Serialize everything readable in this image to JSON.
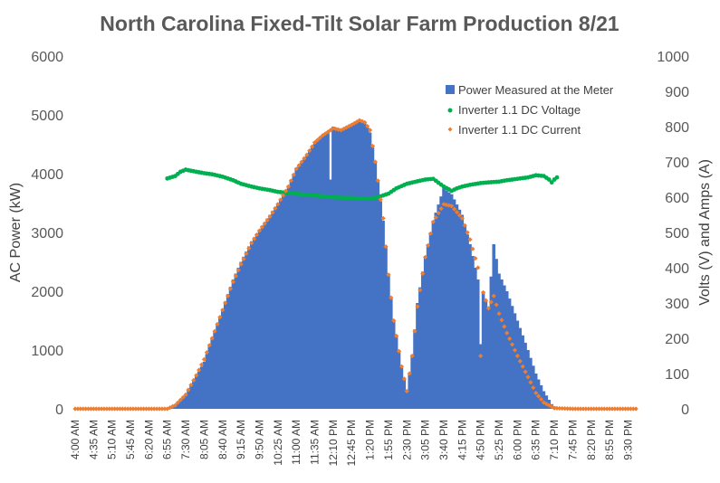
{
  "chart_data": {
    "type": "bar",
    "title": "North Carolina Fixed-Tilt Solar Farm Production 8/21",
    "ylabel": "AC Power (kW)",
    "y2label": "Volts (V) and Amps (A)",
    "ylim": [
      0,
      6000
    ],
    "y2lim": [
      0,
      1000
    ],
    "yticks": [
      "0",
      "1000",
      "2000",
      "3000",
      "4000",
      "5000",
      "6000"
    ],
    "y2ticks": [
      "0",
      "100",
      "200",
      "300",
      "400",
      "500",
      "600",
      "700",
      "800",
      "900",
      "1000"
    ],
    "xticks": [
      "4:00 AM",
      "4:35 AM",
      "5:10 AM",
      "5:45 AM",
      "6:20 AM",
      "6:55 AM",
      "7:30 AM",
      "8:05 AM",
      "8:40 AM",
      "9:15 AM",
      "9:50 AM",
      "10:25 AM",
      "11:00 AM",
      "11:35 AM",
      "12:10 PM",
      "12:45 PM",
      "1:20 PM",
      "1:55 PM",
      "2:30 PM",
      "3:05 PM",
      "3:40 PM",
      "4:15 PM",
      "4:50 PM",
      "5:25 PM",
      "6:00 PM",
      "6:35 PM",
      "7:10 PM",
      "7:45 PM",
      "8:20 PM",
      "8:55 PM",
      "9:30 PM"
    ],
    "grid": false,
    "legend_position": "top-right",
    "series": [
      {
        "name": "Power Measured at the Meter",
        "kind": "bar",
        "axis": "left",
        "color": "#4472c4",
        "points": [
          [
            "6:55 AM",
            0
          ],
          [
            "7:10 AM",
            80
          ],
          [
            "7:30 AM",
            250
          ],
          [
            "7:50 AM",
            550
          ],
          [
            "8:05 AM",
            800
          ],
          [
            "8:20 AM",
            1200
          ],
          [
            "8:40 AM",
            1700
          ],
          [
            "9:00 AM",
            2200
          ],
          [
            "9:15 AM",
            2500
          ],
          [
            "9:35 AM",
            2850
          ],
          [
            "9:50 AM",
            3050
          ],
          [
            "10:10 AM",
            3300
          ],
          [
            "10:25 AM",
            3500
          ],
          [
            "10:45 AM",
            3800
          ],
          [
            "11:00 AM",
            4100
          ],
          [
            "11:20 AM",
            4300
          ],
          [
            "11:35 AM",
            4550
          ],
          [
            "11:50 AM",
            4650
          ],
          [
            "12:00 PM",
            4700
          ],
          [
            "12:05 PM",
            3900
          ],
          [
            "12:10 PM",
            4800
          ],
          [
            "12:25 PM",
            4750
          ],
          [
            "12:45 PM",
            4850
          ],
          [
            "1:00 PM",
            4900
          ],
          [
            "1:10 PM",
            4870
          ],
          [
            "1:20 PM",
            4700
          ],
          [
            "1:30 PM",
            4200
          ],
          [
            "1:45 PM",
            3200
          ],
          [
            "1:55 PM",
            2300
          ],
          [
            "2:05 PM",
            1500
          ],
          [
            "2:20 PM",
            700
          ],
          [
            "2:30 PM",
            300
          ],
          [
            "2:40 PM",
            900
          ],
          [
            "2:50 PM",
            1800
          ],
          [
            "3:05 PM",
            2600
          ],
          [
            "3:20 PM",
            3200
          ],
          [
            "3:40 PM",
            3750
          ],
          [
            "3:55 PM",
            3650
          ],
          [
            "4:15 PM",
            3300
          ],
          [
            "4:30 PM",
            2800
          ],
          [
            "4:45 PM",
            2200
          ],
          [
            "4:50 PM",
            1100
          ],
          [
            "4:55 PM",
            2000
          ],
          [
            "5:05 PM",
            1700
          ],
          [
            "5:15 PM",
            2800
          ],
          [
            "5:25 PM",
            2300
          ],
          [
            "5:40 PM",
            2000
          ],
          [
            "6:00 PM",
            1500
          ],
          [
            "6:20 PM",
            1000
          ],
          [
            "6:35 PM",
            600
          ],
          [
            "6:50 PM",
            300
          ],
          [
            "7:05 PM",
            80
          ],
          [
            "7:15 PM",
            0
          ]
        ]
      },
      {
        "name": "Inverter 1.1 DC Voltage",
        "kind": "scatter",
        "axis": "right",
        "color": "#00b050",
        "points": [
          [
            "6:55 AM",
            653
          ],
          [
            "7:10 AM",
            660
          ],
          [
            "7:20 AM",
            672
          ],
          [
            "7:30 AM",
            678
          ],
          [
            "7:50 AM",
            672
          ],
          [
            "8:05 AM",
            668
          ],
          [
            "8:20 AM",
            665
          ],
          [
            "8:40 AM",
            658
          ],
          [
            "9:00 AM",
            648
          ],
          [
            "9:15 AM",
            638
          ],
          [
            "9:35 AM",
            630
          ],
          [
            "9:50 AM",
            625
          ],
          [
            "10:10 AM",
            620
          ],
          [
            "10:25 AM",
            615
          ],
          [
            "10:45 AM",
            612
          ],
          [
            "11:00 AM",
            610
          ],
          [
            "11:20 AM",
            606
          ],
          [
            "11:35 AM",
            605
          ],
          [
            "11:55 AM",
            602
          ],
          [
            "12:10 PM",
            600
          ],
          [
            "12:30 PM",
            598
          ],
          [
            "12:45 PM",
            598
          ],
          [
            "1:05 PM",
            596
          ],
          [
            "1:20 PM",
            596
          ],
          [
            "1:35 PM",
            600
          ],
          [
            "1:55 PM",
            610
          ],
          [
            "2:10 PM",
            625
          ],
          [
            "2:30 PM",
            638
          ],
          [
            "2:50 PM",
            645
          ],
          [
            "3:05 PM",
            650
          ],
          [
            "3:20 PM",
            652
          ],
          [
            "3:40 PM",
            630
          ],
          [
            "3:55 PM",
            618
          ],
          [
            "4:05 PM",
            625
          ],
          [
            "4:15 PM",
            630
          ],
          [
            "4:30 PM",
            635
          ],
          [
            "4:50 PM",
            640
          ],
          [
            "5:05 PM",
            642
          ],
          [
            "5:25 PM",
            644
          ],
          [
            "5:40 PM",
            648
          ],
          [
            "6:00 PM",
            652
          ],
          [
            "6:20 PM",
            656
          ],
          [
            "6:35 PM",
            662
          ],
          [
            "6:50 PM",
            660
          ],
          [
            "7:00 PM",
            650
          ],
          [
            "7:05 PM",
            642
          ],
          [
            "7:10 PM",
            650
          ],
          [
            "7:15 PM",
            656
          ]
        ]
      },
      {
        "name": "Inverter 1.1 DC Current",
        "kind": "scatter",
        "axis": "right",
        "color": "#ed7d31",
        "points": [
          [
            "4:00 AM",
            0
          ],
          [
            "4:35 AM",
            0
          ],
          [
            "5:10 AM",
            0
          ],
          [
            "5:45 AM",
            0
          ],
          [
            "6:20 AM",
            0
          ],
          [
            "6:55 AM",
            0
          ],
          [
            "7:10 AM",
            10
          ],
          [
            "7:30 AM",
            40
          ],
          [
            "7:50 AM",
            95
          ],
          [
            "8:05 AM",
            140
          ],
          [
            "8:20 AM",
            200
          ],
          [
            "8:40 AM",
            280
          ],
          [
            "9:00 AM",
            360
          ],
          [
            "9:15 AM",
            410
          ],
          [
            "9:35 AM",
            470
          ],
          [
            "9:50 AM",
            505
          ],
          [
            "10:10 AM",
            545
          ],
          [
            "10:25 AM",
            580
          ],
          [
            "10:45 AM",
            630
          ],
          [
            "11:00 AM",
            680
          ],
          [
            "11:20 AM",
            720
          ],
          [
            "11:35 AM",
            755
          ],
          [
            "11:50 AM",
            775
          ],
          [
            "12:10 PM",
            795
          ],
          [
            "12:25 PM",
            790
          ],
          [
            "12:45 PM",
            805
          ],
          [
            "1:00 PM",
            818
          ],
          [
            "1:10 PM",
            812
          ],
          [
            "1:20 PM",
            790
          ],
          [
            "1:30 PM",
            700
          ],
          [
            "1:45 PM",
            540
          ],
          [
            "1:55 PM",
            380
          ],
          [
            "2:05 PM",
            250
          ],
          [
            "2:20 PM",
            120
          ],
          [
            "2:30 PM",
            50
          ],
          [
            "2:40 PM",
            150
          ],
          [
            "2:50 PM",
            290
          ],
          [
            "3:05 PM",
            430
          ],
          [
            "3:20 PM",
            530
          ],
          [
            "3:40 PM",
            580
          ],
          [
            "3:55 PM",
            575
          ],
          [
            "4:15 PM",
            540
          ],
          [
            "4:30 PM",
            480
          ],
          [
            "4:45 PM",
            400
          ],
          [
            "4:50 PM",
            150
          ],
          [
            "4:55 PM",
            330
          ],
          [
            "5:05 PM",
            285
          ],
          [
            "5:15 PM",
            320
          ],
          [
            "5:25 PM",
            270
          ],
          [
            "5:40 PM",
            215
          ],
          [
            "6:00 PM",
            150
          ],
          [
            "6:20 PM",
            90
          ],
          [
            "6:35 PM",
            45
          ],
          [
            "6:50 PM",
            18
          ],
          [
            "7:10 PM",
            2
          ],
          [
            "7:45 PM",
            0
          ],
          [
            "8:20 PM",
            0
          ],
          [
            "8:55 PM",
            0
          ],
          [
            "9:30 PM",
            0
          ],
          [
            "9:45 PM",
            0
          ]
        ]
      }
    ]
  }
}
